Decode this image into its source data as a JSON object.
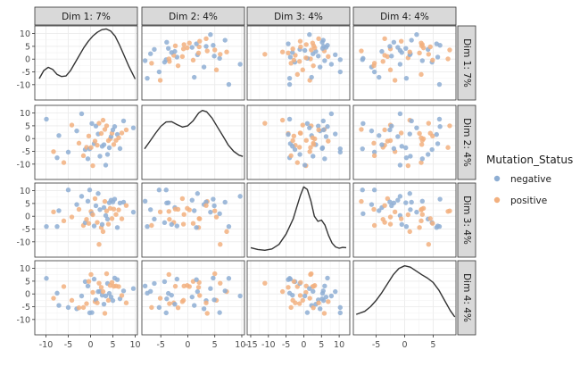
{
  "chart_data": {
    "type": "scatter-matrix",
    "dims": [
      "Dim 1: 7%",
      "Dim 2: 4%",
      "Dim 3: 4%",
      "Dim 4: 4%"
    ],
    "row_labels": [
      "Dim 1: 7%",
      "Dim 2: 4%",
      "Dim 3: 4%",
      "Dim 4: 4%"
    ],
    "axes": [
      {
        "range": [
          -12.5,
          10.5
        ],
        "ticks": [
          -10,
          -5,
          0,
          5,
          10
        ],
        "tick_labels": [
          "-10",
          "-5",
          "0",
          "5",
          "10"
        ]
      },
      {
        "range": [
          -8.5,
          10.5
        ],
        "ticks": [
          -5,
          0,
          5,
          10
        ],
        "tick_labels": [
          "-5",
          "0",
          "5",
          "10-"
        ]
      },
      {
        "range": [
          -16,
          13
        ],
        "ticks": [
          -15,
          -10,
          -5,
          0,
          5,
          10
        ],
        "tick_labels": [
          "-15",
          "-10",
          "-5",
          "0",
          "5",
          "10"
        ]
      },
      {
        "range": [
          -9,
          9
        ],
        "ticks": [
          -5,
          0,
          5
        ],
        "tick_labels": [
          "-5",
          "0",
          "5"
        ]
      }
    ],
    "y_axis": {
      "ticks": [
        -10,
        -5,
        0,
        5,
        10
      ],
      "tick_labels": [
        "-10",
        "-5",
        "0",
        "5",
        "10"
      ]
    },
    "legend": {
      "title": "Mutation_Status",
      "placement": "right",
      "items": [
        {
          "name": "negative",
          "color": "#8eaed3"
        },
        {
          "name": "positive",
          "color": "#f2b07f"
        }
      ]
    },
    "colors": {
      "negative": "#8eaed3",
      "positive": "#f2b07f",
      "density": "#333333",
      "strip": "#d9d9d9",
      "grid": "#ebebeb"
    },
    "density": [
      [
        [
          -11.5,
          -7.6
        ],
        [
          -10.5,
          -4.5
        ],
        [
          -9.5,
          -3.2
        ],
        [
          -8.5,
          -4.0
        ],
        [
          -7.5,
          -6.0
        ],
        [
          -6.5,
          -6.8
        ],
        [
          -5.5,
          -6.6
        ],
        [
          -4.5,
          -4.5
        ],
        [
          -3.5,
          -1.5
        ],
        [
          -2.5,
          1.5
        ],
        [
          -1.5,
          4.5
        ],
        [
          -0.5,
          7.0
        ],
        [
          0.5,
          9.0
        ],
        [
          1.5,
          10.5
        ],
        [
          2.5,
          11.5
        ],
        [
          3.5,
          11.8
        ],
        [
          4.5,
          11.0
        ],
        [
          5.5,
          9.0
        ],
        [
          6.5,
          5.5
        ],
        [
          7.5,
          1.5
        ],
        [
          8.5,
          -2.5
        ],
        [
          9.5,
          -6.0
        ],
        [
          10,
          -7.8
        ]
      ],
      [
        [
          -8,
          -4.0
        ],
        [
          -7,
          -1.0
        ],
        [
          -6,
          2.0
        ],
        [
          -5,
          4.8
        ],
        [
          -4,
          6.5
        ],
        [
          -3,
          6.6
        ],
        [
          -2,
          5.5
        ],
        [
          -1,
          4.5
        ],
        [
          0,
          5.0
        ],
        [
          1,
          7.0
        ],
        [
          2,
          10.0
        ],
        [
          2.7,
          11.0
        ],
        [
          3.5,
          10.5
        ],
        [
          4.5,
          8.0
        ],
        [
          5.5,
          4.5
        ],
        [
          6.5,
          1.0
        ],
        [
          7.5,
          -2.5
        ],
        [
          8.5,
          -5.0
        ],
        [
          9.5,
          -6.5
        ],
        [
          10.2,
          -7.0
        ]
      ],
      [
        [
          -15,
          -12.3
        ],
        [
          -13,
          -13.0
        ],
        [
          -11,
          -13.3
        ],
        [
          -9,
          -12.8
        ],
        [
          -7,
          -11.0
        ],
        [
          -5,
          -7.0
        ],
        [
          -4,
          -4.0
        ],
        [
          -3,
          -1.0
        ],
        [
          -2,
          3.5
        ],
        [
          -1,
          8.0
        ],
        [
          0,
          11.5
        ],
        [
          1,
          10.5
        ],
        [
          2,
          6.0
        ],
        [
          3,
          0.0
        ],
        [
          4,
          -2.0
        ],
        [
          5,
          -1.5
        ],
        [
          6,
          -3.5
        ],
        [
          7,
          -7.5
        ],
        [
          8,
          -10.5
        ],
        [
          9,
          -12.0
        ],
        [
          10,
          -12.5
        ],
        [
          11,
          -12.2
        ],
        [
          12,
          -12.3
        ]
      ],
      [
        [
          -8.5,
          -8.0
        ],
        [
          -7,
          -6.8
        ],
        [
          -6,
          -5.0
        ],
        [
          -5,
          -2.5
        ],
        [
          -4,
          0.5
        ],
        [
          -3,
          4.0
        ],
        [
          -2,
          7.5
        ],
        [
          -1,
          10.0
        ],
        [
          0,
          11.0
        ],
        [
          1,
          10.5
        ],
        [
          2,
          9.0
        ],
        [
          3,
          7.5
        ],
        [
          4,
          6.2
        ],
        [
          5,
          4.5
        ],
        [
          6,
          1.5
        ],
        [
          7,
          -2.5
        ],
        [
          8,
          -6.5
        ],
        [
          8.8,
          -9.0
        ]
      ]
    ],
    "points": [
      [
        -9.9,
        7.6,
        -4.0,
        6.1,
        0
      ],
      [
        -8.3,
        -5.1,
        1.7,
        -1.7,
        1
      ],
      [
        -7.5,
        -7.5,
        -4.0,
        0.3,
        0
      ],
      [
        -7.1,
        1.2,
        2.2,
        -4.5,
        0
      ],
      [
        -6.0,
        -9.4,
        -1.8,
        2.9,
        1
      ],
      [
        -5.0,
        -5.3,
        10.3,
        -5.3,
        0
      ],
      [
        -4.2,
        5.3,
        -0.3,
        -2.5,
        1
      ],
      [
        -3.1,
        3.0,
        4.6,
        -5.8,
        0
      ],
      [
        -2.6,
        -1.8,
        2.7,
        -5.4,
        1
      ],
      [
        -2.0,
        9.7,
        7.8,
        -0.8,
        0
      ],
      [
        -1.6,
        -6.7,
        -3.6,
        -5.3,
        1
      ],
      [
        -1.2,
        -4.3,
        -2.5,
        4.8,
        0
      ],
      [
        -0.9,
        -3.4,
        -1.2,
        -3.8,
        1
      ],
      [
        -0.6,
        -7.9,
        5.9,
        3.1,
        0
      ],
      [
        -0.4,
        1.0,
        -2.8,
        4.9,
        1
      ],
      [
        -0.2,
        -4.0,
        10.3,
        -7.4,
        0
      ],
      [
        0.1,
        -3.5,
        1.9,
        7.6,
        1
      ],
      [
        0.3,
        5.9,
        1.0,
        -7.3,
        0
      ],
      [
        0.5,
        -10.6,
        0.6,
        0.6,
        1
      ],
      [
        0.8,
        -2.0,
        -3.8,
        5.8,
        0
      ],
      [
        1.0,
        -1.0,
        6.9,
        -3.0,
        1
      ],
      [
        1.2,
        4.9,
        4.1,
        -2.3,
        0
      ],
      [
        1.5,
        -2.6,
        -2.4,
        -3.5,
        1
      ],
      [
        1.7,
        1.8,
        8.9,
        0.9,
        0
      ],
      [
        1.9,
        6.0,
        -11.0,
        4.2,
        1
      ],
      [
        2.1,
        -6.9,
        2.6,
        1.0,
        0
      ],
      [
        2.4,
        2.0,
        -4.4,
        2.6,
        1
      ],
      [
        2.6,
        -3.0,
        -3.2,
        -0.5,
        0
      ],
      [
        2.8,
        7.2,
        -6.0,
        0.9,
        1
      ],
      [
        3.0,
        -2.4,
        3.4,
        -4.0,
        0
      ],
      [
        3.2,
        3.6,
        5.8,
        -7.6,
        1
      ],
      [
        3.4,
        -10.4,
        0.3,
        -0.8,
        0
      ],
      [
        3.6,
        5.0,
        2.1,
        7.9,
        1
      ],
      [
        3.8,
        -6.2,
        -1.1,
        4.1,
        0
      ],
      [
        4.0,
        -0.8,
        -3.1,
        -2.5,
        1
      ],
      [
        4.2,
        -3.6,
        5.3,
        0.2,
        0
      ],
      [
        4.4,
        -0.1,
        3.1,
        3.3,
        1
      ],
      [
        4.6,
        0.8,
        6.3,
        -1.2,
        0
      ],
      [
        4.8,
        2.1,
        -0.9,
        4.5,
        1
      ],
      [
        5.0,
        3.4,
        5.6,
        -2.6,
        0
      ],
      [
        5.2,
        -2.3,
        2.8,
        3.0,
        1
      ],
      [
        5.4,
        4.7,
        6.7,
        6.2,
        0
      ],
      [
        5.7,
        -0.7,
        0.7,
        3.1,
        1
      ],
      [
        6.0,
        1.6,
        -4.4,
        5.6,
        0
      ],
      [
        6.3,
        0.3,
        2.5,
        2.9,
        1
      ],
      [
        6.6,
        -3.9,
        5.2,
        -1.9,
        0
      ],
      [
        7.0,
        2.2,
        -1.0,
        -0.6,
        1
      ],
      [
        7.4,
        6.9,
        5.5,
        1.2,
        0
      ],
      [
        8.0,
        3.4,
        4.2,
        -3.5,
        1
      ],
      [
        9.6,
        4.2,
        1.6,
        2.1,
        0
      ]
    ]
  }
}
